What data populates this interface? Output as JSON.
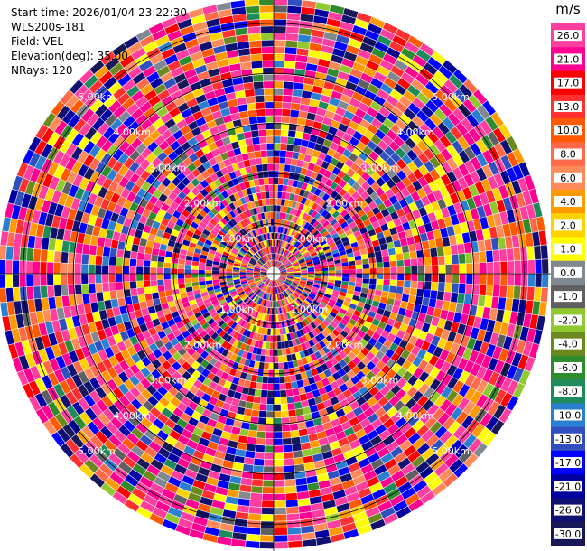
{
  "header": {
    "start_time": "Start time: 2026/01/04 23:22:30",
    "instrument": "WLS200s-181",
    "field": "Field: VEL",
    "elevation": "Elevation(deg): 35.00",
    "nrays": "NRays: 120"
  },
  "chart_data": {
    "type": "heatmap",
    "projection": "polar-ppi",
    "field": "VEL",
    "units": "m/s",
    "nrays": 120,
    "max_range_km": 5.5,
    "range_rings_km": [
      1,
      2,
      3,
      4,
      5
    ],
    "ring_labels": [
      "1.00km",
      "2.00km",
      "3.00km",
      "4.00km",
      "5.00km"
    ],
    "colorbar": {
      "unit_label": "m/s",
      "ticks": [
        "26.0",
        "21.0",
        "17.0",
        "13.0",
        "10.0",
        "8.0",
        "6.0",
        "4.0",
        "2.0",
        "1.0",
        "0.0",
        "-1.0",
        "-2.0",
        "-4.0",
        "-6.0",
        "-8.0",
        "-10.0",
        "-13.0",
        "-17.0",
        "-21.0",
        "-26.0",
        "-30.0"
      ],
      "colors": [
        "#ff3ea0",
        "#ff0090",
        "#ff0000",
        "#ff3030",
        "#ff5a00",
        "#ff6a4a",
        "#ff8a5a",
        "#ff9a00",
        "#ffd200",
        "#ffff00",
        "#808890",
        "#606060",
        "#90c830",
        "#6a8a20",
        "#2e8b2e",
        "#1f8b5a",
        "#2a7fd0",
        "#3050c0",
        "#0000ff",
        "#0000a0",
        "#101070",
        "#181858"
      ]
    }
  }
}
